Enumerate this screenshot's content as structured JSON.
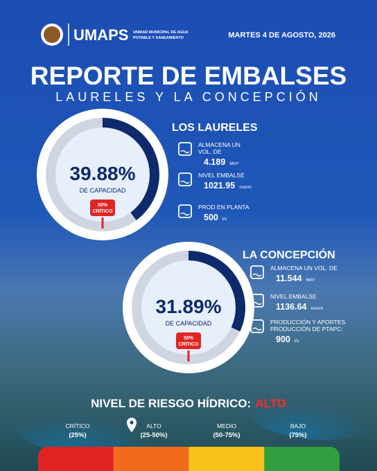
{
  "header": {
    "brand": "UMAPS",
    "org_line1": "UNIDAD MUNICIPAL DE AGUA",
    "org_line2": "POTABLE Y SANEAMIENTO",
    "date": "MARTES 4 DE AGOSTO, 2026"
  },
  "title": "REPORTE DE EMBALSES",
  "subtitle": "LAURELES Y LA CONCEPCIÓN",
  "reservoirs": [
    {
      "name": "LOS LAURELES",
      "capacity": {
        "value": 39.88,
        "label": "39.88%"
      },
      "capacity_caption": "DE CAPACIDAD",
      "badge_line1": "50%",
      "badge_line2": "CRÍTICO",
      "items": [
        {
          "label_lines": [
            "ALMACENA UN",
            "VOL. DE"
          ],
          "value": "4.189",
          "unit": "Mm³"
        },
        {
          "label_lines": [
            "NIVEL EMBALSE"
          ],
          "value": "1021.95",
          "unit": "msnm"
        },
        {
          "label_lines": [
            "PROD EN PLANTA"
          ],
          "value": "500",
          "unit": "l/s"
        }
      ]
    },
    {
      "name": "LA CONCEPCIÓN",
      "capacity": {
        "value": 31.89,
        "label": "31.89%"
      },
      "capacity_caption": "DE CAPACIDAD",
      "badge_line1": "50%",
      "badge_line2": "CRÍTICO",
      "items": [
        {
          "label_lines": [
            "ALMACENA UN VOL. DE"
          ],
          "value": "11.544",
          "unit": "Mm³"
        },
        {
          "label_lines": [
            "NIVEL EMBALSE"
          ],
          "value": "1136.64",
          "unit": "msnm"
        },
        {
          "label_lines": [
            "PRODUCCIÓN Y APORTES",
            "PRODUCCIÓN DE PTAPC:"
          ],
          "value": "900",
          "unit": "l/s"
        }
      ]
    }
  ],
  "risk": {
    "label": "NIVEL DE RIESGO HÍDRICO:",
    "current": "ALTO",
    "levels": [
      {
        "name": "CRÍTICO",
        "range": "(25%)",
        "color": "#e02424"
      },
      {
        "name": "ALTO",
        "range": "(25-50%)",
        "color": "#f26b1d"
      },
      {
        "name": "MEDIO",
        "range": "(50-75%)",
        "color": "#f7c21b"
      },
      {
        "name": "BAJO",
        "range": "(75%)",
        "color": "#2e9e3e"
      }
    ]
  }
}
